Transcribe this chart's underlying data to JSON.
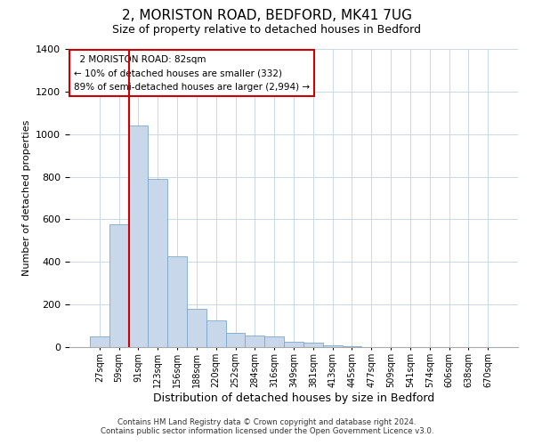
{
  "title": "2, MORISTON ROAD, BEDFORD, MK41 7UG",
  "subtitle": "Size of property relative to detached houses in Bedford",
  "xlabel": "Distribution of detached houses by size in Bedford",
  "ylabel": "Number of detached properties",
  "bin_labels": [
    "27sqm",
    "59sqm",
    "91sqm",
    "123sqm",
    "156sqm",
    "188sqm",
    "220sqm",
    "252sqm",
    "284sqm",
    "316sqm",
    "349sqm",
    "381sqm",
    "413sqm",
    "445sqm",
    "477sqm",
    "509sqm",
    "541sqm",
    "574sqm",
    "606sqm",
    "638sqm",
    "670sqm"
  ],
  "bar_heights": [
    50,
    575,
    1040,
    790,
    425,
    180,
    125,
    65,
    55,
    50,
    25,
    20,
    10,
    5,
    2,
    0,
    0,
    0,
    0,
    0,
    0
  ],
  "bar_color": "#c8d8ea",
  "bar_edge_color": "#7aa8c8",
  "vline_color": "#cc0000",
  "annotation_line1": "2 MORISTON ROAD: 82sqm",
  "annotation_line2": "← 10% of detached houses are smaller (332)",
  "annotation_line3": "89% of semi-detached houses are larger (2,994) →",
  "annotation_box_color": "#ffffff",
  "annotation_box_edge": "#cc0000",
  "ylim": [
    0,
    1400
  ],
  "yticks": [
    0,
    200,
    400,
    600,
    800,
    1000,
    1200,
    1400
  ],
  "footer1": "Contains HM Land Registry data © Crown copyright and database right 2024.",
  "footer2": "Contains public sector information licensed under the Open Government Licence v3.0."
}
